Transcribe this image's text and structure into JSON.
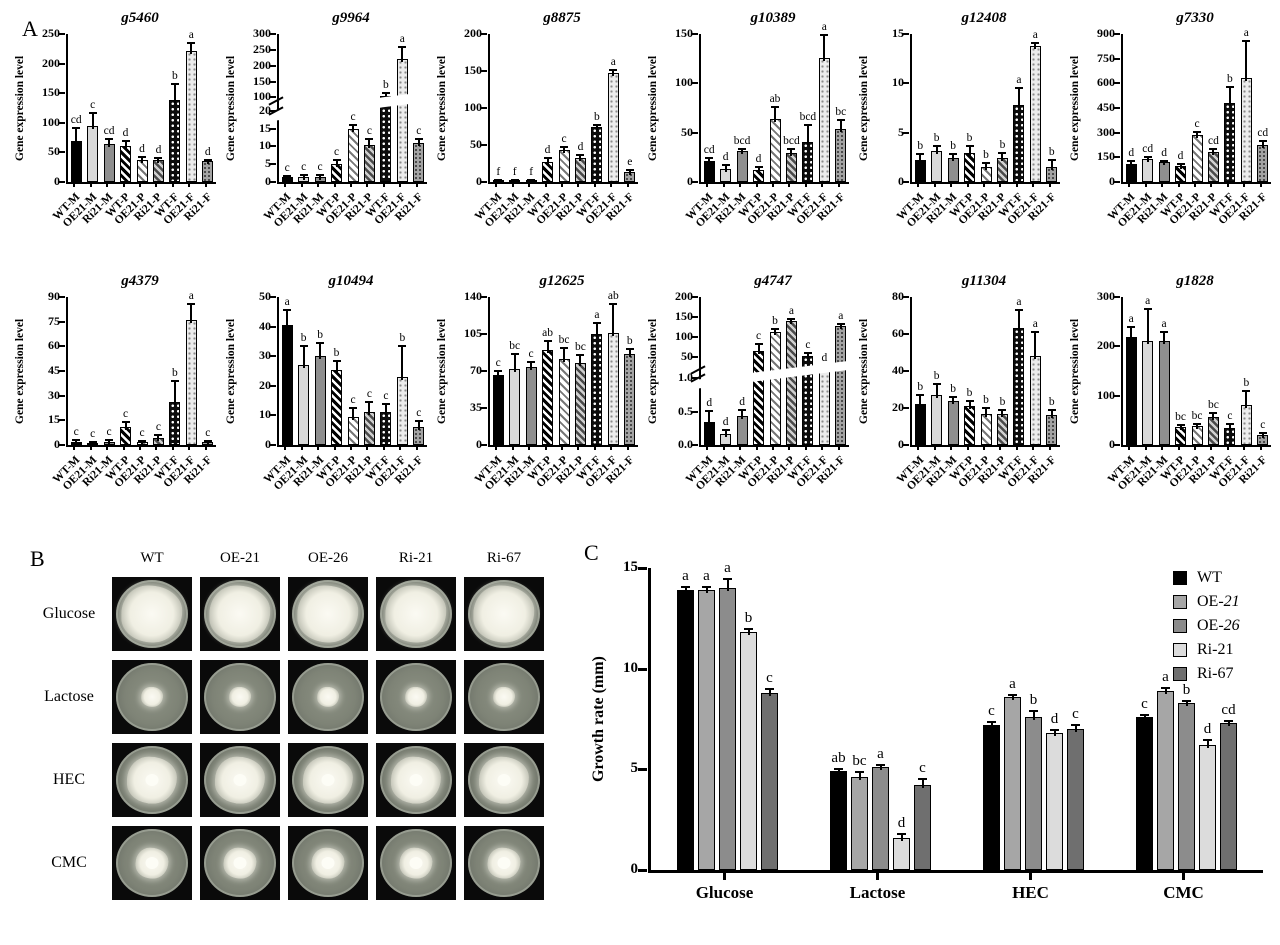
{
  "panels": {
    "a_label": "A",
    "b_label": "B",
    "c_label": "C"
  },
  "panel_a": {
    "ylabel": "Gene expression level",
    "categories": [
      "WT-M",
      "OE21-M",
      "Ri21-M",
      "WT-P",
      "OE21-P",
      "Ri21-P",
      "WT-F",
      "OE21-F",
      "Ri21-F"
    ],
    "bar_styles": [
      "solid-black",
      "solid-light-gray",
      "solid-dark-gray",
      "hatch-black",
      "hatch-light",
      "hatch-gray",
      "dots-on-black",
      "dots-on-light",
      "dots-on-gray"
    ]
  },
  "chart_data": [
    {
      "panel": "A",
      "type": "bar",
      "title": "g5460",
      "ylim": [
        0,
        250
      ],
      "yticks": [
        0,
        50,
        100,
        150,
        200,
        250
      ],
      "values": [
        70,
        95,
        64,
        60,
        37,
        37,
        138,
        222,
        35
      ],
      "errors": [
        22,
        21,
        8,
        10,
        5,
        3,
        28,
        12,
        3
      ],
      "letters": [
        "cd",
        "c",
        "cd",
        "d",
        "d",
        "d",
        "b",
        "a",
        "d"
      ]
    },
    {
      "panel": "A",
      "type": "bar",
      "title": "g9964",
      "ylim": [
        0,
        300
      ],
      "axis_break": {
        "lower": [
          0,
          20
        ],
        "lower_ticks": [
          0,
          5,
          10,
          15,
          20
        ],
        "upper": [
          90,
          300
        ],
        "upper_ticks": [
          100,
          150,
          200,
          250,
          300
        ],
        "lower_frac": 0.48,
        "gap_frac": 0.07
      },
      "values": [
        1.5,
        1.5,
        1.5,
        5,
        15,
        10.5,
        105,
        220,
        11
      ],
      "errors": [
        0.3,
        0.4,
        0.4,
        1.3,
        1,
        1.5,
        10,
        38,
        1
      ],
      "letters": [
        "c",
        "c",
        "c",
        "c",
        "c",
        "c",
        "b",
        "a",
        "c"
      ]
    },
    {
      "panel": "A",
      "type": "bar",
      "title": "g8875",
      "ylim": [
        0,
        200
      ],
      "yticks": [
        0,
        50,
        100,
        150,
        200
      ],
      "values": [
        2,
        2,
        2,
        27,
        43,
        32,
        74,
        147,
        13
      ],
      "errors": [
        0.5,
        0.5,
        0.5,
        6,
        4,
        5,
        3,
        4,
        3
      ],
      "letters": [
        "f",
        "f",
        "f",
        "d",
        "c",
        "d",
        "b",
        "a",
        "e"
      ]
    },
    {
      "panel": "A",
      "type": "bar",
      "title": "g10389",
      "ylim": [
        0,
        150
      ],
      "yticks": [
        0,
        50,
        100,
        150
      ],
      "values": [
        21,
        13,
        31,
        12,
        64,
        29,
        41,
        126,
        54
      ],
      "errors": [
        3,
        4,
        2,
        3,
        12,
        4,
        17,
        23,
        9
      ],
      "letters": [
        "cd",
        "d",
        "bcd",
        "d",
        "ab",
        "bcd",
        "bcd",
        "a",
        "bc"
      ]
    },
    {
      "panel": "A",
      "type": "bar",
      "title": "g12408",
      "ylim": [
        0,
        15
      ],
      "yticks": [
        0,
        5,
        10,
        15
      ],
      "values": [
        2.2,
        3.1,
        2.4,
        2.9,
        1.5,
        2.4,
        7.8,
        13.8,
        1.5
      ],
      "errors": [
        0.6,
        0.5,
        0.4,
        0.7,
        0.4,
        0.5,
        1.7,
        0.3,
        0.7
      ],
      "letters": [
        "b",
        "b",
        "b",
        "b",
        "b",
        "b",
        "a",
        "a",
        "b"
      ]
    },
    {
      "panel": "A",
      "type": "bar",
      "title": "g7330",
      "ylim": [
        0,
        900
      ],
      "yticks": [
        0,
        150,
        300,
        450,
        600,
        750,
        900
      ],
      "values": [
        110,
        140,
        120,
        100,
        285,
        185,
        480,
        635,
        225
      ],
      "errors": [
        15,
        12,
        10,
        10,
        18,
        15,
        95,
        220,
        25
      ],
      "letters": [
        "d",
        "cd",
        "d",
        "d",
        "c",
        "cd",
        "b",
        "a",
        "cd"
      ]
    },
    {
      "panel": "A",
      "type": "bar",
      "title": "g4379",
      "ylim": [
        0,
        90
      ],
      "yticks": [
        0,
        15,
        30,
        45,
        60,
        75,
        90
      ],
      "values": [
        2,
        1.5,
        2,
        11,
        2,
        4.5,
        26,
        76,
        2
      ],
      "errors": [
        0.8,
        0.5,
        0.8,
        3,
        0.5,
        1.5,
        13,
        10,
        0.5
      ],
      "letters": [
        "c",
        "c",
        "c",
        "c",
        "c",
        "c",
        "b",
        "a",
        "c"
      ]
    },
    {
      "panel": "A",
      "type": "bar",
      "title": "g10494",
      "ylim": [
        0,
        50
      ],
      "yticks": [
        0,
        10,
        20,
        30,
        40,
        50
      ],
      "values": [
        40.5,
        27,
        30,
        25.5,
        9.5,
        11,
        11,
        23,
        6
      ],
      "errors": [
        5,
        6.5,
        4.5,
        3,
        3,
        3.5,
        3,
        10.5,
        2
      ],
      "letters": [
        "a",
        "b",
        "b",
        "b",
        "c",
        "c",
        "c",
        "b",
        "c"
      ]
    },
    {
      "panel": "A",
      "type": "bar",
      "title": "g12625",
      "ylim": [
        0,
        140
      ],
      "yticks": [
        0,
        35,
        70,
        105,
        140
      ],
      "values": [
        66,
        72,
        74,
        90,
        81,
        78,
        105,
        106,
        86
      ],
      "errors": [
        4,
        14,
        5,
        8,
        11,
        7,
        10,
        27,
        5
      ],
      "letters": [
        "c",
        "bc",
        "c",
        "ab",
        "bc",
        "bc",
        "a",
        "ab",
        "b"
      ]
    },
    {
      "panel": "A",
      "type": "bar",
      "title": "g4747",
      "ylim": [
        0,
        200
      ],
      "axis_break": {
        "lower": [
          0,
          1
        ],
        "lower_ticks": [
          "0.0",
          "0.5",
          "1.0"
        ],
        "upper": [
          20,
          200
        ],
        "upper_ticks": [
          50,
          100,
          150,
          200
        ],
        "lower_frac": 0.45,
        "gap_frac": 0.06
      },
      "values": [
        0.35,
        0.17,
        0.43,
        65,
        112,
        140,
        54,
        24,
        128
      ],
      "errors": [
        0.16,
        0.05,
        0.1,
        18,
        8,
        6,
        8,
        4,
        5
      ],
      "letters": [
        "d",
        "d",
        "d",
        "c",
        "b",
        "a",
        "c",
        "d",
        "a"
      ]
    },
    {
      "panel": "A",
      "type": "bar",
      "title": "g11304",
      "ylim": [
        0,
        80
      ],
      "yticks": [
        0,
        20,
        40,
        60,
        80
      ],
      "values": [
        22,
        27,
        24,
        21,
        17,
        17,
        63,
        48,
        16
      ],
      "errors": [
        5,
        6,
        2,
        3,
        3,
        2,
        10,
        13,
        3
      ],
      "letters": [
        "b",
        "b",
        "b",
        "b",
        "b",
        "b",
        "a",
        "a",
        "b"
      ]
    },
    {
      "panel": "A",
      "type": "bar",
      "title": "g1828",
      "ylim": [
        0,
        300
      ],
      "yticks": [
        0,
        100,
        200,
        300
      ],
      "values": [
        218,
        210,
        211,
        37,
        38,
        57,
        34,
        82,
        20
      ],
      "errors": [
        22,
        65,
        18,
        3,
        4,
        7,
        8,
        28,
        4
      ],
      "letters": [
        "a",
        "a",
        "a",
        "bc",
        "bc",
        "bc",
        "c",
        "b",
        "c"
      ]
    },
    {
      "panel": "C",
      "type": "bar",
      "title": "",
      "ylabel": "Growth rate (mm)",
      "ylim": [
        0,
        15
      ],
      "yticks": [
        0,
        5,
        10,
        15
      ],
      "categories": [
        "Glucose",
        "Lactose",
        "HEC",
        "CMC"
      ],
      "legend_position": "top-right",
      "grid": false,
      "series": [
        {
          "name": "WT",
          "color": "#000000",
          "values": [
            13.9,
            4.9,
            7.2,
            7.6
          ],
          "errors": [
            0.15,
            0.1,
            0.15,
            0.1
          ],
          "letters": [
            "a",
            "ab",
            "c",
            "c"
          ]
        },
        {
          "name": "OE-21",
          "italic_number": true,
          "color": "#a6a6a6",
          "values": [
            13.9,
            4.6,
            8.6,
            8.9
          ],
          "errors": [
            0.15,
            0.25,
            0.1,
            0.15
          ],
          "letters": [
            "a",
            "bc",
            "a",
            "a"
          ]
        },
        {
          "name": "OE-26",
          "italic_number": true,
          "color": "#8c8c8c",
          "values": [
            14.0,
            5.1,
            7.6,
            8.3
          ],
          "errors": [
            0.45,
            0.1,
            0.3,
            0.1
          ],
          "letters": [
            "a",
            "a",
            "b",
            "b"
          ]
        },
        {
          "name": "Ri-21",
          "color": "#dcdcdc",
          "values": [
            11.8,
            1.6,
            6.8,
            6.2
          ],
          "errors": [
            0.15,
            0.2,
            0.15,
            0.25
          ],
          "letters": [
            "b",
            "d",
            "d",
            "d"
          ]
        },
        {
          "name": "Ri-67",
          "color": "#6f6f6f",
          "values": [
            8.8,
            4.2,
            7.0,
            7.3
          ],
          "errors": [
            0.2,
            0.3,
            0.2,
            0.1
          ],
          "letters": [
            "c",
            "c",
            "c",
            "cd"
          ]
        }
      ]
    }
  ],
  "panel_b": {
    "columns": [
      "WT",
      "OE-21",
      "OE-26",
      "Ri-21",
      "Ri-67"
    ],
    "rows": [
      {
        "label": "Glucose",
        "colony_scale": 0.93,
        "core_dot": false
      },
      {
        "label": "Lactose",
        "colony_scale": 0.33,
        "core_dot": false
      },
      {
        "label": "HEC",
        "colony_scale": 0.76,
        "core_dot": true
      },
      {
        "label": "CMC",
        "colony_scale": 0.5,
        "core_dot": true
      }
    ],
    "colors": {
      "background": "#0a0a0a",
      "agar": "#7e8376",
      "colony": "#f4f3ea"
    }
  }
}
